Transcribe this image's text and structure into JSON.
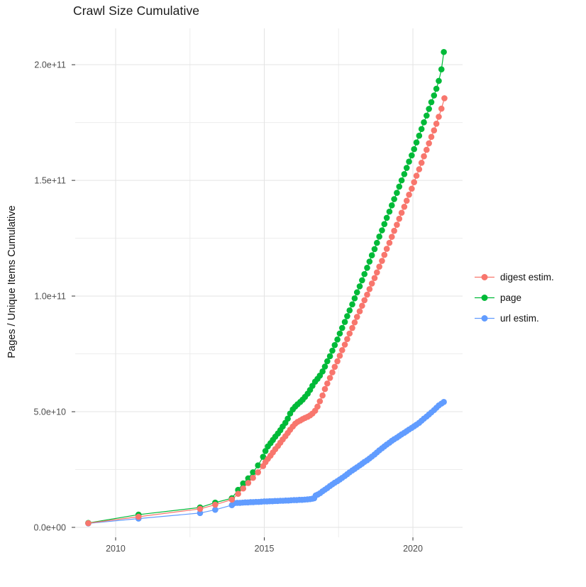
{
  "chart_data": {
    "type": "line",
    "title": "Crawl Size Cumulative",
    "ylabel": "Pages / Unique Items Cumulative",
    "xlabel": "",
    "legend_position": "right",
    "grid": true,
    "y_unit": "1e10",
    "xlim": [
      2008.64,
      2021.67
    ],
    "ylim": [
      -0.43,
      21.57
    ],
    "x_ticks": {
      "values": [
        2010,
        2015,
        2020
      ],
      "labels": [
        "2010",
        "2015",
        "2020"
      ]
    },
    "x_minor_ticks": [
      2012.5,
      2017.5
    ],
    "y_ticks": {
      "values": [
        0,
        5,
        10,
        15,
        20
      ],
      "labels": [
        "0.0e+00",
        "5.0e+10",
        "1.0e+11",
        "1.5e+11",
        "2.0e+11"
      ]
    },
    "y_minor_ticks": [
      2.5,
      7.5,
      12.5,
      17.5
    ],
    "series": [
      {
        "name": "digest estim.",
        "color": "#F8766D",
        "points": [
          [
            2009.08,
            0.18
          ],
          [
            2010.77,
            0.46
          ],
          [
            2012.84,
            0.8
          ],
          [
            2013.35,
            0.98
          ],
          [
            2013.91,
            1.2
          ],
          [
            2014.12,
            1.45
          ],
          [
            2014.29,
            1.68
          ],
          [
            2014.46,
            1.92
          ],
          [
            2014.62,
            2.14
          ],
          [
            2014.79,
            2.38
          ],
          [
            2014.96,
            2.65
          ],
          [
            2015.04,
            2.82
          ],
          [
            2015.12,
            2.96
          ],
          [
            2015.21,
            3.1
          ],
          [
            2015.29,
            3.24
          ],
          [
            2015.37,
            3.38
          ],
          [
            2015.46,
            3.52
          ],
          [
            2015.54,
            3.66
          ],
          [
            2015.62,
            3.8
          ],
          [
            2015.71,
            3.94
          ],
          [
            2015.79,
            4.08
          ],
          [
            2015.87,
            4.22
          ],
          [
            2015.96,
            4.36
          ],
          [
            2016.04,
            4.48
          ],
          [
            2016.12,
            4.56
          ],
          [
            2016.21,
            4.62
          ],
          [
            2016.29,
            4.68
          ],
          [
            2016.37,
            4.73
          ],
          [
            2016.46,
            4.78
          ],
          [
            2016.54,
            4.84
          ],
          [
            2016.62,
            4.92
          ],
          [
            2016.71,
            5.04
          ],
          [
            2016.79,
            5.22
          ],
          [
            2016.87,
            5.45
          ],
          [
            2016.96,
            5.7
          ],
          [
            2017.04,
            5.98
          ],
          [
            2017.12,
            6.22
          ],
          [
            2017.21,
            6.46
          ],
          [
            2017.29,
            6.7
          ],
          [
            2017.37,
            6.94
          ],
          [
            2017.46,
            7.18
          ],
          [
            2017.54,
            7.42
          ],
          [
            2017.62,
            7.66
          ],
          [
            2017.71,
            7.9
          ],
          [
            2017.79,
            8.14
          ],
          [
            2017.87,
            8.38
          ],
          [
            2017.96,
            8.62
          ],
          [
            2018.04,
            8.86
          ],
          [
            2018.12,
            9.1
          ],
          [
            2018.21,
            9.34
          ],
          [
            2018.29,
            9.58
          ],
          [
            2018.37,
            9.82
          ],
          [
            2018.46,
            10.06
          ],
          [
            2018.54,
            10.3
          ],
          [
            2018.62,
            10.54
          ],
          [
            2018.71,
            10.78
          ],
          [
            2018.79,
            11.02
          ],
          [
            2018.87,
            11.27
          ],
          [
            2018.96,
            11.52
          ],
          [
            2019.04,
            11.78
          ],
          [
            2019.12,
            12.04
          ],
          [
            2019.21,
            12.3
          ],
          [
            2019.29,
            12.56
          ],
          [
            2019.37,
            12.82
          ],
          [
            2019.46,
            13.08
          ],
          [
            2019.54,
            13.34
          ],
          [
            2019.62,
            13.6
          ],
          [
            2019.71,
            13.86
          ],
          [
            2019.79,
            14.12
          ],
          [
            2019.87,
            14.38
          ],
          [
            2019.96,
            14.64
          ],
          [
            2020.04,
            14.92
          ],
          [
            2020.12,
            15.2
          ],
          [
            2020.21,
            15.48
          ],
          [
            2020.29,
            15.76
          ],
          [
            2020.37,
            16.04
          ],
          [
            2020.46,
            16.32
          ],
          [
            2020.54,
            16.6
          ],
          [
            2020.62,
            16.88
          ],
          [
            2020.71,
            17.16
          ],
          [
            2020.79,
            17.45
          ],
          [
            2020.87,
            17.75
          ],
          [
            2020.96,
            18.1
          ],
          [
            2021.06,
            18.55
          ]
        ]
      },
      {
        "name": "page",
        "color": "#00BA38",
        "points": [
          [
            2009.08,
            0.19
          ],
          [
            2010.77,
            0.55
          ],
          [
            2012.84,
            0.86
          ],
          [
            2013.35,
            1.07
          ],
          [
            2013.91,
            1.26
          ],
          [
            2014.12,
            1.62
          ],
          [
            2014.29,
            1.9
          ],
          [
            2014.46,
            2.12
          ],
          [
            2014.62,
            2.38
          ],
          [
            2014.79,
            2.68
          ],
          [
            2014.96,
            3.05
          ],
          [
            2015.04,
            3.3
          ],
          [
            2015.12,
            3.5
          ],
          [
            2015.21,
            3.64
          ],
          [
            2015.29,
            3.78
          ],
          [
            2015.37,
            3.92
          ],
          [
            2015.46,
            4.06
          ],
          [
            2015.54,
            4.2
          ],
          [
            2015.62,
            4.36
          ],
          [
            2015.71,
            4.52
          ],
          [
            2015.79,
            4.7
          ],
          [
            2015.87,
            4.92
          ],
          [
            2015.96,
            5.1
          ],
          [
            2016.04,
            5.22
          ],
          [
            2016.12,
            5.32
          ],
          [
            2016.21,
            5.42
          ],
          [
            2016.29,
            5.52
          ],
          [
            2016.37,
            5.64
          ],
          [
            2016.46,
            5.78
          ],
          [
            2016.54,
            5.94
          ],
          [
            2016.62,
            6.12
          ],
          [
            2016.71,
            6.3
          ],
          [
            2016.79,
            6.42
          ],
          [
            2016.87,
            6.56
          ],
          [
            2016.96,
            6.74
          ],
          [
            2017.04,
            6.95
          ],
          [
            2017.12,
            7.18
          ],
          [
            2017.21,
            7.4
          ],
          [
            2017.29,
            7.64
          ],
          [
            2017.37,
            7.88
          ],
          [
            2017.46,
            8.12
          ],
          [
            2017.54,
            8.38
          ],
          [
            2017.62,
            8.62
          ],
          [
            2017.71,
            8.88
          ],
          [
            2017.79,
            9.13
          ],
          [
            2017.87,
            9.38
          ],
          [
            2017.96,
            9.64
          ],
          [
            2018.04,
            9.9
          ],
          [
            2018.12,
            10.16
          ],
          [
            2018.21,
            10.42
          ],
          [
            2018.29,
            10.68
          ],
          [
            2018.37,
            10.95
          ],
          [
            2018.46,
            11.22
          ],
          [
            2018.54,
            11.49
          ],
          [
            2018.62,
            11.76
          ],
          [
            2018.71,
            12.03
          ],
          [
            2018.79,
            12.3
          ],
          [
            2018.87,
            12.57
          ],
          [
            2018.96,
            12.84
          ],
          [
            2019.04,
            13.11
          ],
          [
            2019.12,
            13.38
          ],
          [
            2019.21,
            13.65
          ],
          [
            2019.29,
            13.92
          ],
          [
            2019.37,
            14.19
          ],
          [
            2019.46,
            14.46
          ],
          [
            2019.54,
            14.73
          ],
          [
            2019.62,
            15.0
          ],
          [
            2019.71,
            15.27
          ],
          [
            2019.79,
            15.54
          ],
          [
            2019.87,
            15.81
          ],
          [
            2019.96,
            16.08
          ],
          [
            2020.04,
            16.35
          ],
          [
            2020.12,
            16.64
          ],
          [
            2020.21,
            16.93
          ],
          [
            2020.29,
            17.22
          ],
          [
            2020.37,
            17.51
          ],
          [
            2020.46,
            17.8
          ],
          [
            2020.54,
            18.09
          ],
          [
            2020.62,
            18.38
          ],
          [
            2020.71,
            18.67
          ],
          [
            2020.79,
            18.96
          ],
          [
            2020.87,
            19.3
          ],
          [
            2020.96,
            19.8
          ],
          [
            2021.04,
            20.55
          ]
        ]
      },
      {
        "name": "url estim.",
        "color": "#619CFF",
        "points": [
          [
            2009.08,
            0.17
          ],
          [
            2010.77,
            0.38
          ],
          [
            2012.84,
            0.62
          ],
          [
            2013.35,
            0.76
          ],
          [
            2013.91,
            0.96
          ],
          [
            2014.0,
            1.05
          ],
          [
            2014.09,
            1.06
          ],
          [
            2014.18,
            1.06
          ],
          [
            2014.27,
            1.07
          ],
          [
            2014.36,
            1.08
          ],
          [
            2014.45,
            1.08
          ],
          [
            2014.54,
            1.09
          ],
          [
            2014.63,
            1.09
          ],
          [
            2014.72,
            1.1
          ],
          [
            2014.81,
            1.1
          ],
          [
            2014.9,
            1.11
          ],
          [
            2015.0,
            1.12
          ],
          [
            2015.09,
            1.12
          ],
          [
            2015.18,
            1.13
          ],
          [
            2015.27,
            1.13
          ],
          [
            2015.36,
            1.14
          ],
          [
            2015.45,
            1.14
          ],
          [
            2015.54,
            1.15
          ],
          [
            2015.63,
            1.15
          ],
          [
            2015.72,
            1.16
          ],
          [
            2015.81,
            1.16
          ],
          [
            2015.9,
            1.17
          ],
          [
            2016.0,
            1.18
          ],
          [
            2016.09,
            1.18
          ],
          [
            2016.18,
            1.19
          ],
          [
            2016.27,
            1.19
          ],
          [
            2016.36,
            1.2
          ],
          [
            2016.45,
            1.21
          ],
          [
            2016.54,
            1.22
          ],
          [
            2016.62,
            1.24
          ],
          [
            2016.68,
            1.26
          ],
          [
            2016.73,
            1.38
          ],
          [
            2016.8,
            1.42
          ],
          [
            2016.88,
            1.48
          ],
          [
            2016.96,
            1.56
          ],
          [
            2017.04,
            1.63
          ],
          [
            2017.12,
            1.7
          ],
          [
            2017.21,
            1.79
          ],
          [
            2017.29,
            1.86
          ],
          [
            2017.37,
            1.93
          ],
          [
            2017.46,
            2.0
          ],
          [
            2017.54,
            2.07
          ],
          [
            2017.62,
            2.14
          ],
          [
            2017.71,
            2.22
          ],
          [
            2017.79,
            2.3
          ],
          [
            2017.87,
            2.38
          ],
          [
            2017.96,
            2.46
          ],
          [
            2018.04,
            2.53
          ],
          [
            2018.12,
            2.6
          ],
          [
            2018.21,
            2.68
          ],
          [
            2018.29,
            2.75
          ],
          [
            2018.37,
            2.83
          ],
          [
            2018.46,
            2.9
          ],
          [
            2018.54,
            2.98
          ],
          [
            2018.62,
            3.06
          ],
          [
            2018.71,
            3.15
          ],
          [
            2018.79,
            3.24
          ],
          [
            2018.87,
            3.33
          ],
          [
            2018.96,
            3.42
          ],
          [
            2019.04,
            3.5
          ],
          [
            2019.12,
            3.58
          ],
          [
            2019.21,
            3.66
          ],
          [
            2019.29,
            3.74
          ],
          [
            2019.37,
            3.81
          ],
          [
            2019.46,
            3.88
          ],
          [
            2019.54,
            3.95
          ],
          [
            2019.62,
            4.02
          ],
          [
            2019.71,
            4.09
          ],
          [
            2019.79,
            4.16
          ],
          [
            2019.87,
            4.23
          ],
          [
            2019.96,
            4.3
          ],
          [
            2020.04,
            4.37
          ],
          [
            2020.12,
            4.44
          ],
          [
            2020.21,
            4.52
          ],
          [
            2020.29,
            4.61
          ],
          [
            2020.37,
            4.7
          ],
          [
            2020.46,
            4.79
          ],
          [
            2020.54,
            4.88
          ],
          [
            2020.62,
            4.97
          ],
          [
            2020.71,
            5.07
          ],
          [
            2020.79,
            5.17
          ],
          [
            2020.87,
            5.27
          ],
          [
            2020.96,
            5.35
          ],
          [
            2021.04,
            5.42
          ]
        ]
      }
    ]
  }
}
